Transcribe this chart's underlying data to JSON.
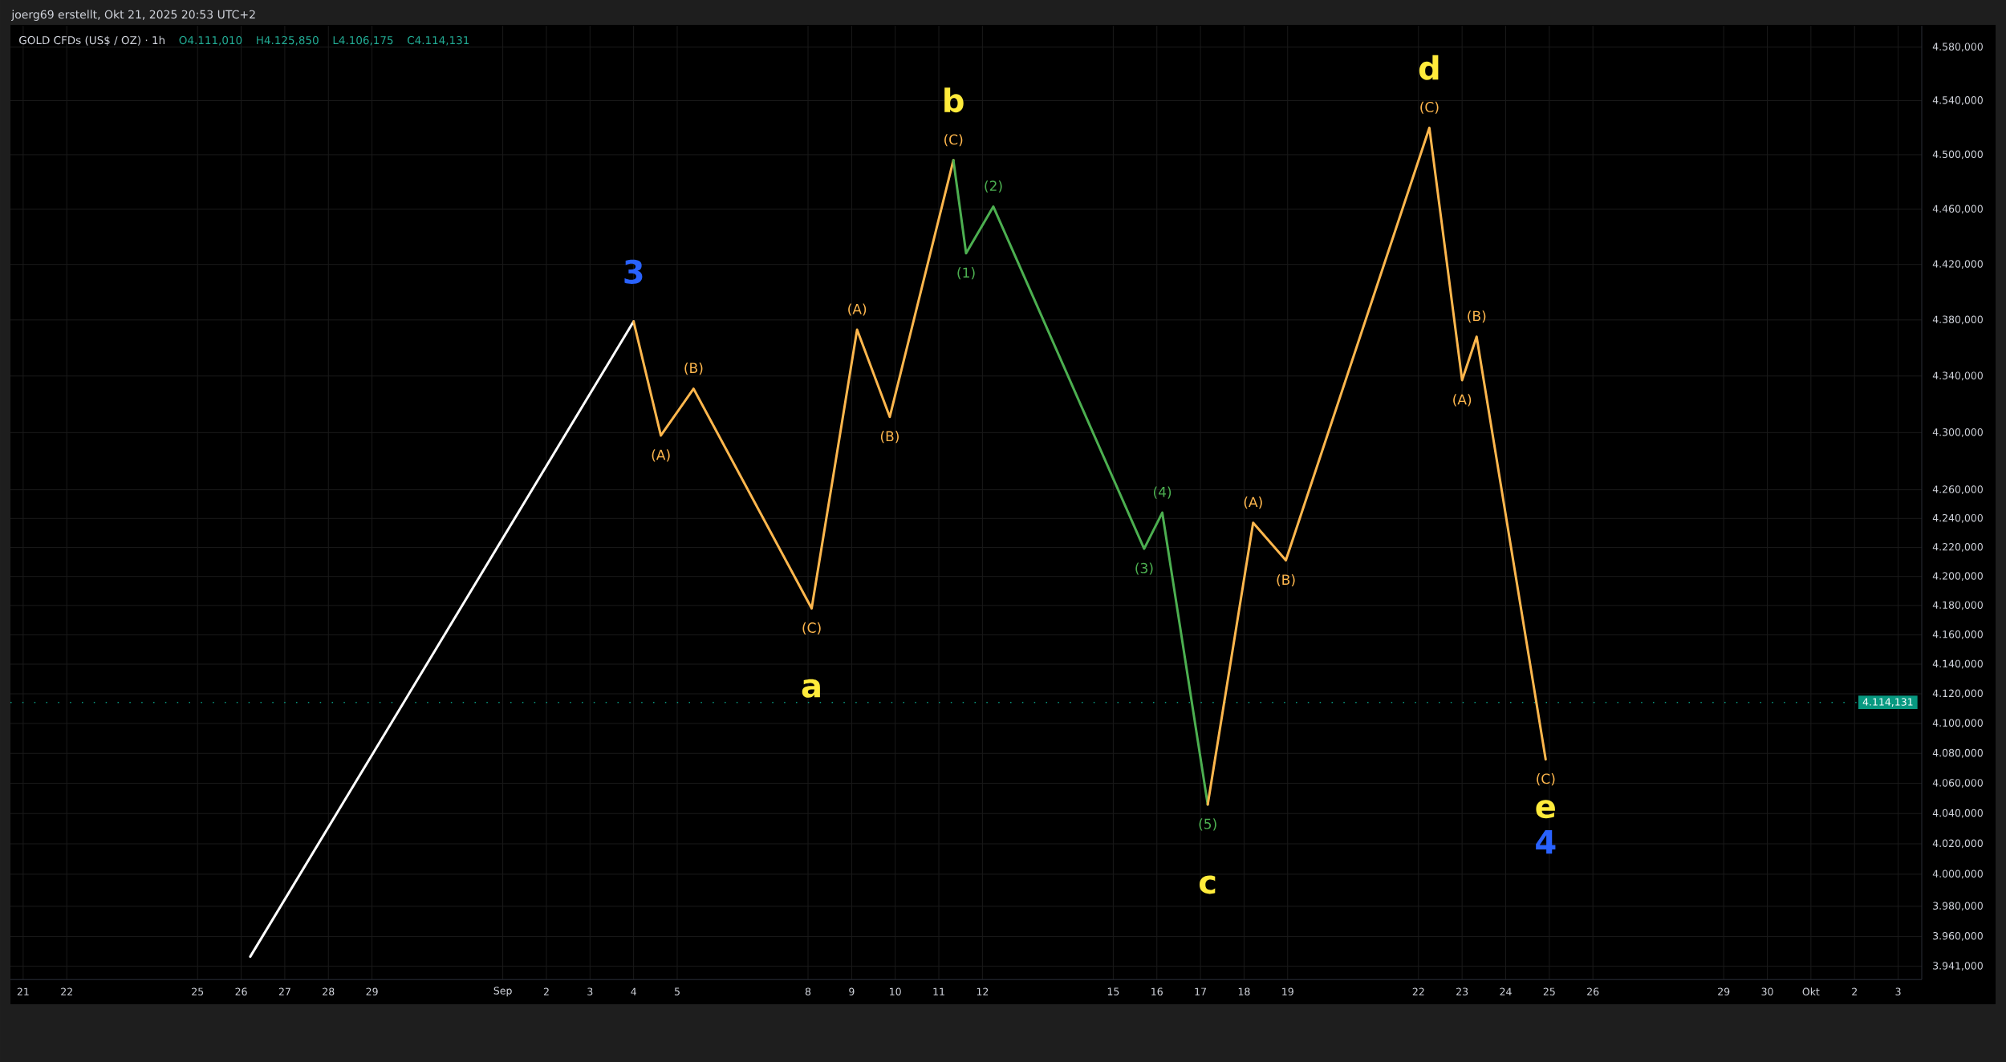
{
  "chart_data": {
    "type": "line",
    "title": "GOLD CFDs (US$ / OZ) · 1h",
    "annotations": [
      "joerg69 erstellt, Okt 21, 2025 20:53 UTC+2",
      "O4.111,010",
      "H4.125,850",
      "L4.106,175",
      "C4.114,131",
      {
        "text": "3",
        "x": "2025-09-04T00:00",
        "y": 4379
      },
      {
        "text": "(A)",
        "x": "2025-09-04T15:00",
        "y": 4298
      },
      {
        "text": "(B)",
        "x": "2025-09-05T09:00",
        "y": 4331
      },
      {
        "text": "(C)",
        "x": "2025-09-08T02:00",
        "y": 4178
      },
      {
        "text": "a",
        "x": "2025-09-08T02:00",
        "y": 4178
      },
      {
        "text": "(A)",
        "x": "2025-09-09T03:00",
        "y": 4373
      },
      {
        "text": "(B)",
        "x": "2025-09-09T21:00",
        "y": 4311
      },
      {
        "text": "(C)",
        "x": "2025-09-11T08:00",
        "y": 4496
      },
      {
        "text": "b",
        "x": "2025-09-11T08:00",
        "y": 4496
      },
      {
        "text": "(1)",
        "x": "2025-09-11T15:00",
        "y": 4428
      },
      {
        "text": "(2)",
        "x": "2025-09-12T06:00",
        "y": 4462
      },
      {
        "text": "(3)",
        "x": "2025-09-15T17:00",
        "y": 4219
      },
      {
        "text": "(4)",
        "x": "2025-09-16T03:00",
        "y": 4244
      },
      {
        "text": "(5)",
        "x": "2025-09-17T04:00",
        "y": 4046
      },
      {
        "text": "c",
        "x": "2025-09-17T04:00",
        "y": 4046
      },
      {
        "text": "(A)",
        "x": "2025-09-18T05:00",
        "y": 4237
      },
      {
        "text": "(B)",
        "x": "2025-09-18T23:00",
        "y": 4211
      },
      {
        "text": "(C)",
        "x": "2025-09-22T06:00",
        "y": 4520
      },
      {
        "text": "d",
        "x": "2025-09-22T06:00",
        "y": 4520
      },
      {
        "text": "(A)",
        "x": "2025-09-23T00:00",
        "y": 4337
      },
      {
        "text": "(B)",
        "x": "2025-09-23T08:00",
        "y": 4368
      },
      {
        "text": "(C)",
        "x": "2025-09-24T22:00",
        "y": 4076
      },
      {
        "text": "e",
        "x": "2025-09-24T22:00",
        "y": 4076
      },
      {
        "text": "4",
        "x": "2025-09-24T22:00",
        "y": 4076
      }
    ],
    "series": [
      {
        "color": "#ffffff",
        "x": [
          "2025-08-26T05:00",
          "2025-09-04T00:00"
        ],
        "values": [
          3947,
          4379
        ]
      },
      {
        "color": "#ffb74d",
        "x": [
          "2025-09-04T00:00",
          "2025-09-04T15:00",
          "2025-09-05T09:00",
          "2025-09-08T02:00",
          "2025-09-09T03:00",
          "2025-09-09T21:00",
          "2025-09-11T08:00"
        ],
        "values": [
          4379,
          4298,
          4331,
          4178,
          4373,
          4311,
          4496
        ]
      },
      {
        "color": "#4caf50",
        "x": [
          "2025-09-11T08:00",
          "2025-09-11T15:00",
          "2025-09-12T06:00",
          "2025-09-15T17:00",
          "2025-09-16T03:00",
          "2025-09-17T04:00"
        ],
        "values": [
          4496,
          4428,
          4462,
          4219,
          4244,
          4046
        ]
      },
      {
        "color": "#ffb74d",
        "x": [
          "2025-09-17T04:00",
          "2025-09-18T05:00",
          "2025-09-18T23:00",
          "2025-09-22T06:00",
          "2025-09-23T00:00",
          "2025-09-23T08:00",
          "2025-09-24T22:00"
        ],
        "values": [
          4046,
          4237,
          4211,
          4520,
          4337,
          4368,
          4076
        ]
      }
    ],
    "xlim": [
      "2025-08-20T17:00",
      "2025-10-03T13:00"
    ],
    "ylim": [
      3932,
      4596
    ],
    "log": "y",
    "grid": true,
    "xticks": [
      {
        "value": "2025-08-21",
        "label": "21"
      },
      {
        "value": "2025-08-22",
        "label": "22"
      },
      {
        "value": "2025-08-25",
        "label": "25"
      },
      {
        "value": "2025-08-26",
        "label": "26"
      },
      {
        "value": "2025-08-27",
        "label": "27"
      },
      {
        "value": "2025-08-28",
        "label": "28"
      },
      {
        "value": "2025-08-29",
        "label": "29"
      },
      {
        "value": "2025-09-01",
        "label": "Sep"
      },
      {
        "value": "2025-09-02",
        "label": "2"
      },
      {
        "value": "2025-09-03",
        "label": "3"
      },
      {
        "value": "2025-09-04",
        "label": "4"
      },
      {
        "value": "2025-09-05",
        "label": "5"
      },
      {
        "value": "2025-09-08",
        "label": "8"
      },
      {
        "value": "2025-09-09",
        "label": "9"
      },
      {
        "value": "2025-09-10",
        "label": "10"
      },
      {
        "value": "2025-09-11",
        "label": "11"
      },
      {
        "value": "2025-09-12",
        "label": "12"
      },
      {
        "value": "2025-09-15",
        "label": "15"
      },
      {
        "value": "2025-09-16",
        "label": "16"
      },
      {
        "value": "2025-09-17",
        "label": "17"
      },
      {
        "value": "2025-09-18",
        "label": "18"
      },
      {
        "value": "2025-09-19",
        "label": "19"
      },
      {
        "value": "2025-09-22",
        "label": "22"
      },
      {
        "value": "2025-09-23",
        "label": "23"
      },
      {
        "value": "2025-09-24",
        "label": "24"
      },
      {
        "value": "2025-09-25",
        "label": "25"
      },
      {
        "value": "2025-09-26",
        "label": "26"
      },
      {
        "value": "2025-09-29",
        "label": "29"
      },
      {
        "value": "2025-09-30",
        "label": "30"
      },
      {
        "value": "2025-10-01",
        "label": "Okt"
      },
      {
        "value": "2025-10-02",
        "label": "2"
      },
      {
        "value": "2025-10-03",
        "label": "3"
      }
    ],
    "yticks": [
      {
        "value": 3941,
        "label": "3.941,000"
      },
      {
        "value": 3960,
        "label": "3.960,000"
      },
      {
        "value": 3980,
        "label": "3.980,000"
      },
      {
        "value": 4000,
        "label": "4.000,000"
      },
      {
        "value": 4020,
        "label": "4.020,000"
      },
      {
        "value": 4040,
        "label": "4.040,000"
      },
      {
        "value": 4060,
        "label": "4.060,000"
      },
      {
        "value": 4080,
        "label": "4.080,000"
      },
      {
        "value": 4100,
        "label": "4.100,000"
      },
      {
        "value": 4120,
        "label": "4.120,000"
      },
      {
        "value": 4140,
        "label": "4.140,000"
      },
      {
        "value": 4160,
        "label": "4.160,000"
      },
      {
        "value": 4180,
        "label": "4.180,000"
      },
      {
        "value": 4200,
        "label": "4.200,000"
      },
      {
        "value": 4220,
        "label": "4.220,000"
      },
      {
        "value": 4240,
        "label": "4.240,000"
      },
      {
        "value": 4260,
        "label": "4.260,000"
      },
      {
        "value": 4300,
        "label": "4.300,000"
      },
      {
        "value": 4340,
        "label": "4.340,000"
      },
      {
        "value": 4380,
        "label": "4.380,000"
      },
      {
        "value": 4420,
        "label": "4.420,000"
      },
      {
        "value": 4460,
        "label": "4.460,000"
      },
      {
        "value": 4500,
        "label": "4.500,000"
      },
      {
        "value": 4540,
        "label": "4.540,000"
      },
      {
        "value": 4580,
        "label": "4.580,000"
      }
    ],
    "ref_lines": [
      {
        "axis": "y",
        "value": 4114.131,
        "label": "4.114,131",
        "color": "#089981",
        "line_style": "dotted"
      }
    ]
  }
}
